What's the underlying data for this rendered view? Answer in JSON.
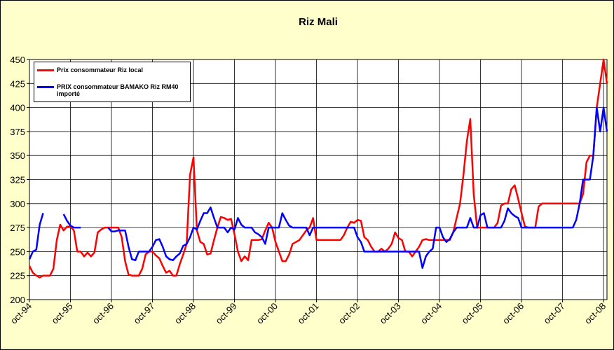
{
  "chart_data": {
    "type": "line",
    "title": "Riz Mali",
    "categories": [
      "oct-94",
      null,
      null,
      null,
      null,
      null,
      null,
      null,
      null,
      null,
      null,
      null,
      "oct-95",
      null,
      null,
      null,
      null,
      null,
      null,
      null,
      null,
      null,
      null,
      null,
      "oct-96",
      null,
      null,
      null,
      null,
      null,
      null,
      null,
      null,
      null,
      null,
      null,
      "oct-97",
      null,
      null,
      null,
      null,
      null,
      null,
      null,
      null,
      null,
      null,
      null,
      "oct-98",
      null,
      null,
      null,
      null,
      null,
      null,
      null,
      null,
      null,
      null,
      null,
      "oct-99",
      null,
      null,
      null,
      null,
      null,
      null,
      null,
      null,
      null,
      null,
      null,
      "oct-00",
      null,
      null,
      null,
      null,
      null,
      null,
      null,
      null,
      null,
      null,
      null,
      "oct-01",
      null,
      null,
      null,
      null,
      null,
      null,
      null,
      null,
      null,
      null,
      null,
      "oct-02",
      null,
      null,
      null,
      null,
      null,
      null,
      null,
      null,
      null,
      null,
      null,
      "oct-03",
      null,
      null,
      null,
      null,
      null,
      null,
      null,
      null,
      null,
      null,
      null,
      "oct-04",
      null,
      null,
      null,
      null,
      null,
      null,
      null,
      null,
      null,
      null,
      null,
      "oct-05",
      null,
      null,
      null,
      null,
      null,
      null,
      null,
      null,
      null,
      null,
      null,
      "oct-06",
      null,
      null,
      null,
      null,
      null,
      null,
      null,
      null,
      null,
      null,
      null,
      "oct-07",
      null,
      null,
      null,
      null,
      null,
      null,
      null,
      null,
      null,
      null,
      null,
      "oct-08",
      null
    ],
    "series": [
      {
        "name": "Prix consommateur Riz local",
        "color": "#ff0000",
        "values": [
          235,
          228,
          225,
          223,
          225,
          225,
          225,
          232,
          262,
          278,
          272,
          276,
          276,
          272,
          250,
          250,
          245,
          249,
          245,
          249,
          270,
          273,
          275,
          275,
          275,
          275,
          275,
          265,
          240,
          226,
          225,
          225,
          225,
          232,
          247,
          250,
          250,
          246,
          243,
          235,
          228,
          230,
          225,
          225,
          237,
          247,
          258,
          330,
          348,
          272,
          260,
          258,
          247,
          248,
          262,
          275,
          286,
          285,
          283,
          284,
          268,
          250,
          240,
          245,
          241,
          262,
          262,
          262,
          263,
          272,
          280,
          275,
          260,
          250,
          240,
          240,
          247,
          258,
          260,
          262,
          267,
          272,
          275,
          285,
          262,
          262,
          262,
          262,
          262,
          262,
          262,
          262,
          267,
          275,
          281,
          280,
          283,
          282,
          265,
          262,
          255,
          250,
          250,
          253,
          250,
          253,
          258,
          270,
          264,
          262,
          250,
          250,
          245,
          250,
          255,
          262,
          263,
          262,
          262,
          262,
          262,
          262,
          262,
          262,
          270,
          285,
          300,
          330,
          365,
          388,
          310,
          275,
          275,
          275,
          275,
          275,
          275,
          280,
          298,
          300,
          300,
          315,
          319,
          305,
          290,
          276,
          275,
          275,
          275,
          297,
          300,
          300,
          300,
          300,
          300,
          300,
          300,
          300,
          300,
          300,
          300,
          300,
          310,
          343,
          350,
          350,
          400,
          425,
          450,
          425
        ]
      },
      {
        "name": "PRIX consommateur BAMAKO Riz RM40 importé",
        "color": "#0000ff",
        "values": [
          242,
          250,
          252,
          278,
          290,
          null,
          null,
          null,
          null,
          null,
          289,
          282,
          277,
          275,
          275,
          275,
          null,
          null,
          null,
          null,
          null,
          null,
          null,
          275,
          271,
          271,
          272,
          272,
          272,
          255,
          242,
          241,
          250,
          250,
          250,
          250,
          255,
          262,
          263,
          255,
          245,
          242,
          241,
          245,
          248,
          256,
          258,
          265,
          275,
          273,
          282,
          290,
          290,
          296,
          285,
          275,
          275,
          275,
          270,
          275,
          273,
          285,
          278,
          275,
          275,
          275,
          270,
          268,
          265,
          258,
          275,
          275,
          275,
          275,
          290,
          283,
          277,
          275,
          275,
          275,
          275,
          275,
          267,
          275,
          275,
          275,
          275,
          275,
          275,
          275,
          275,
          275,
          275,
          275,
          275,
          275,
          265,
          260,
          250,
          250,
          250,
          250,
          250,
          250,
          250,
          250,
          250,
          250,
          250,
          250,
          250,
          250,
          250,
          250,
          250,
          233,
          245,
          250,
          253,
          275,
          275,
          265,
          260,
          263,
          270,
          275,
          275,
          275,
          275,
          285,
          275,
          275,
          288,
          290,
          275,
          275,
          275,
          275,
          275,
          282,
          295,
          290,
          287,
          285,
          275,
          275,
          275,
          275,
          275,
          275,
          275,
          275,
          275,
          275,
          275,
          275,
          275,
          275,
          275,
          275,
          283,
          300,
          325,
          325,
          325,
          350,
          400,
          375,
          400,
          375
        ]
      }
    ],
    "ylim": [
      200,
      450
    ],
    "yticks": [
      200,
      225,
      250,
      275,
      300,
      325,
      350,
      375,
      400,
      425,
      450
    ],
    "grid": true
  }
}
